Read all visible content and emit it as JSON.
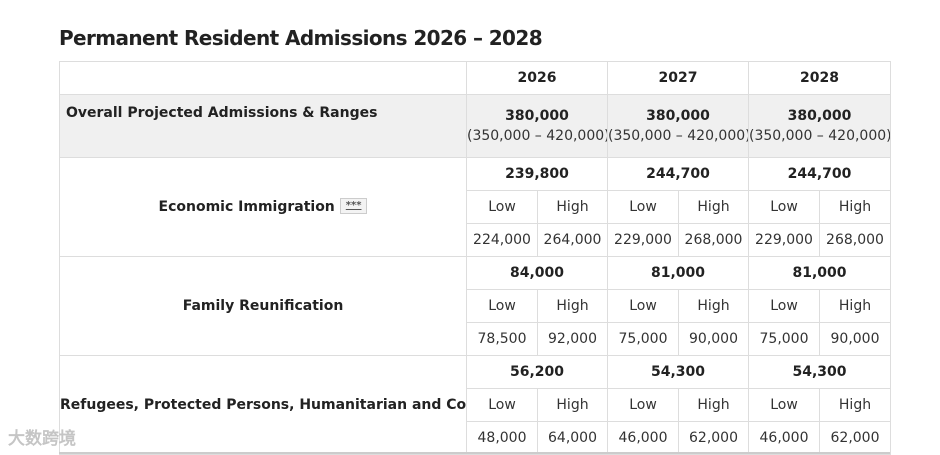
{
  "title": "Permanent Resident Admissions 2026 – 2028",
  "years": [
    "2026",
    "2027",
    "2028"
  ],
  "overall": {
    "label": "Overall Projected Admissions & Ranges",
    "values": [
      {
        "total": "380,000",
        "range": "(350,000 – 420,000)"
      },
      {
        "total": "380,000",
        "range": "(350,000 – 420,000)"
      },
      {
        "total": "380,000",
        "range": "(350,000 – 420,000)"
      }
    ]
  },
  "low_label": "Low",
  "high_label": "High",
  "categories": [
    {
      "label": "Economic Immigration",
      "footnote": "***",
      "years": [
        {
          "total": "239,800",
          "low": "224,000",
          "high": "264,000"
        },
        {
          "total": "244,700",
          "low": "229,000",
          "high": "268,000"
        },
        {
          "total": "244,700",
          "low": "229,000",
          "high": "268,000"
        }
      ]
    },
    {
      "label": "Family Reunification",
      "years": [
        {
          "total": "84,000",
          "low": "78,500",
          "high": "92,000"
        },
        {
          "total": "81,000",
          "low": "75,000",
          "high": "90,000"
        },
        {
          "total": "81,000",
          "low": "75,000",
          "high": "90,000"
        }
      ]
    },
    {
      "label": "Refugees, Protected Persons, Humanitarian and Compassionate, and Other",
      "years": [
        {
          "total": "56,200",
          "low": "48,000",
          "high": "64,000"
        },
        {
          "total": "54,300",
          "low": "46,000",
          "high": "62,000"
        },
        {
          "total": "54,300",
          "low": "46,000",
          "high": "62,000"
        }
      ]
    }
  ],
  "watermark": "大数跨境"
}
